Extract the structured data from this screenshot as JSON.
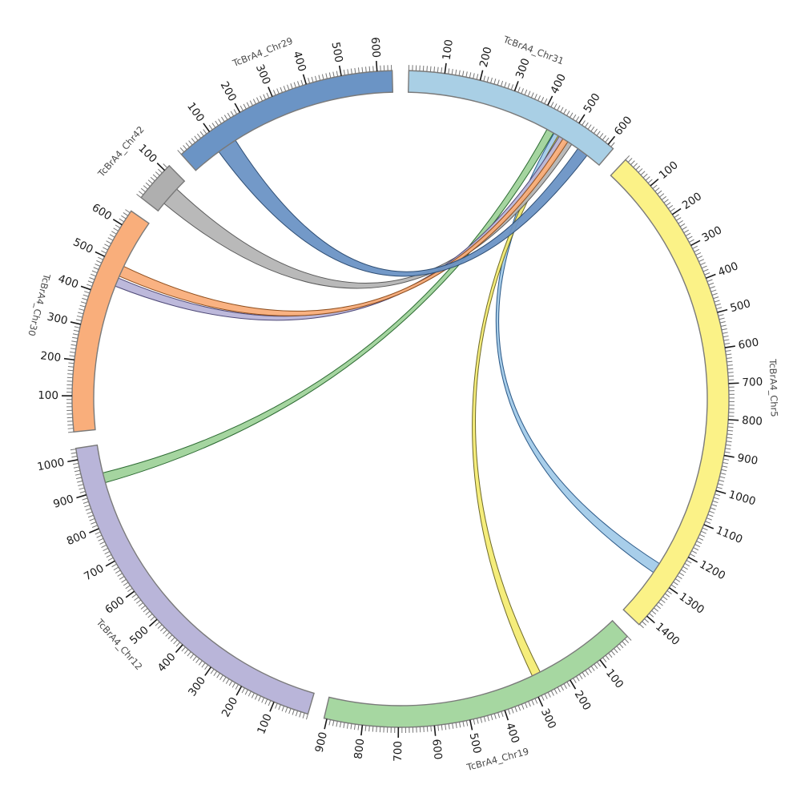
{
  "chart_data": {
    "type": "chord",
    "title": "",
    "legend": "none",
    "tick_interval_minor": 10,
    "tick_interval_major": 100,
    "layout": {
      "order_clockwise_from_top": [
        "TcBrA4_Chr31",
        "TcBrA4_Chr5",
        "TcBrA4_Chr19",
        "TcBrA4_Chr12",
        "TcBrA4_Chr30",
        "TcBrA4_Chr42",
        "TcBrA4_Chr29"
      ],
      "gap_degrees": 2.9,
      "start_angle_degrees": 1.45
    },
    "chromosomes": [
      {
        "name": "TcBrA4_Chr31",
        "length": 618,
        "color": "#a9cfe5",
        "tick_labels": [
          100,
          200,
          300,
          400,
          500,
          600
        ]
      },
      {
        "name": "TcBrA4_Chr5",
        "length": 1432,
        "color": "#fbf287",
        "tick_labels": [
          100,
          200,
          300,
          400,
          500,
          600,
          700,
          800,
          900,
          1000,
          1100,
          1200,
          1300,
          1400
        ]
      },
      {
        "name": "TcBrA4_Chr19",
        "length": 908,
        "color": "#a6d7a1",
        "tick_labels": [
          100,
          200,
          300,
          400,
          500,
          600,
          700,
          800,
          900
        ]
      },
      {
        "name": "TcBrA4_Chr12",
        "length": 1032,
        "color": "#b9b5d9",
        "tick_labels": [
          100,
          200,
          300,
          400,
          500,
          600,
          700,
          800,
          900,
          1000
        ]
      },
      {
        "name": "TcBrA4_Chr30",
        "length": 646,
        "color": "#f9ae7b",
        "tick_labels": [
          100,
          200,
          300,
          400,
          500,
          600
        ]
      },
      {
        "name": "TcBrA4_Chr42",
        "length": 118,
        "color": "#afafaf",
        "tick_labels": [
          100
        ]
      },
      {
        "name": "TcBrA4_Chr29",
        "length": 642,
        "color": "#6b94c5",
        "tick_labels": [
          100,
          200,
          300,
          400,
          500,
          600
        ]
      }
    ],
    "links": [
      {
        "source": "TcBrA4_Chr31",
        "source_start": 430,
        "source_end": 452,
        "target": "TcBrA4_Chr12",
        "target_start": 918,
        "target_end": 948,
        "fill": "#a0d39b",
        "stroke": "#2d6b33"
      },
      {
        "source": "TcBrA4_Chr31",
        "source_start": 454,
        "source_end": 470,
        "target": "TcBrA4_Chr5",
        "target_start": 1258,
        "target_end": 1290,
        "fill": "#a3cbe9",
        "stroke": "#2f5c8a"
      },
      {
        "source": "TcBrA4_Chr31",
        "source_start": 468,
        "source_end": 482,
        "target": "TcBrA4_Chr19",
        "target_start": 264,
        "target_end": 290,
        "fill": "#f4ec74",
        "stroke": "#6f6a28"
      },
      {
        "source": "TcBrA4_Chr42",
        "source_start": 28,
        "source_end": 85,
        "target": "TcBrA4_Chr31",
        "target_start": 497,
        "target_end": 516,
        "fill": "#b5b5b5",
        "stroke": "#5a5a5a"
      },
      {
        "source": "TcBrA4_Chr30",
        "source_start": 434,
        "source_end": 460,
        "target": "TcBrA4_Chr31",
        "target_start": 472,
        "target_end": 486,
        "fill": "#b9b5d9",
        "stroke": "#4f4a78"
      },
      {
        "source": "TcBrA4_Chr30",
        "source_start": 466,
        "source_end": 498,
        "target": "TcBrA4_Chr31",
        "target_start": 485,
        "target_end": 502,
        "fill": "#f9ae7b",
        "stroke": "#8f4e1d"
      },
      {
        "source": "TcBrA4_Chr29",
        "source_start": 88,
        "source_end": 148,
        "target": "TcBrA4_Chr31",
        "target_start": 538,
        "target_end": 572,
        "fill": "#6b94c5",
        "stroke": "#2e4d73"
      }
    ],
    "style": {
      "background": "#ffffff",
      "arc_stroke": "#7a7a7a",
      "tick_minor_color": "#757575",
      "tick_major_color": "#1a1a1a",
      "tick_label_color": "#1a1a1a",
      "chromosome_label_color": "#4a4a4a"
    }
  }
}
